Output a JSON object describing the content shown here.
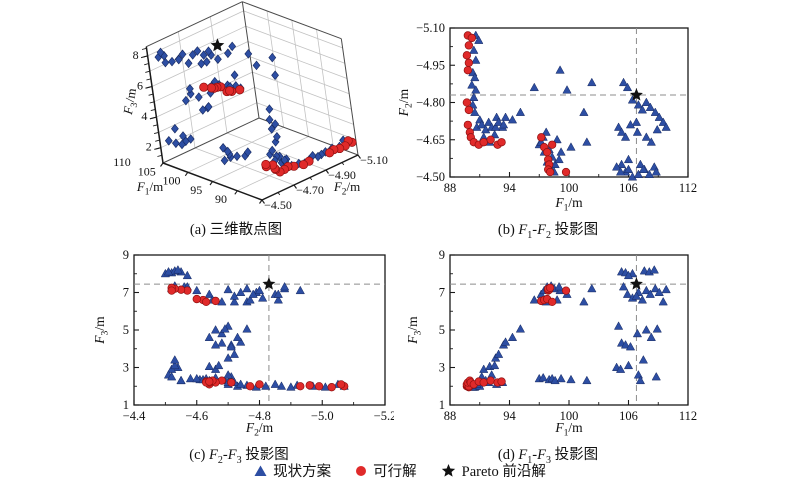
{
  "figure": {
    "colors": {
      "blue": "#2d4ea3",
      "blue_edge": "#17295f",
      "red": "#e02a2a",
      "red_edge": "#8f1010",
      "star": "#111111",
      "dash": "#8c8c8c",
      "grid3d": "#c2c2c2",
      "axis": "#1a1a1a"
    },
    "legend": {
      "items": [
        {
          "marker": "triangle",
          "label": "现状方案"
        },
        {
          "marker": "circle",
          "label": "可行解"
        },
        {
          "marker": "star",
          "label": "Pareto 前沿解"
        }
      ]
    },
    "captions": {
      "a": [
        {
          "t": "(a) 三维散点图"
        }
      ],
      "b": [
        {
          "t": "(b) "
        },
        {
          "i": "F"
        },
        {
          "sub": "1"
        },
        {
          "t": "-"
        },
        {
          "i": "F"
        },
        {
          "sub": "2"
        },
        {
          "t": " 投影图"
        }
      ],
      "c": [
        {
          "t": "(c) "
        },
        {
          "i": "F"
        },
        {
          "sub": "2"
        },
        {
          "t": "-"
        },
        {
          "i": "F"
        },
        {
          "sub": "3"
        },
        {
          "t": " 投影图"
        }
      ],
      "d": [
        {
          "t": "(d) "
        },
        {
          "i": "F"
        },
        {
          "sub": "1"
        },
        {
          "t": "-"
        },
        {
          "i": "F"
        },
        {
          "sub": "3"
        },
        {
          "t": " 投影图"
        }
      ]
    }
  },
  "solutions": {
    "comment_dims": "each point is [F1(m), F2(m), F3(m)]; blue=现状方案, red=可行解, pareto=Pareto 前沿解",
    "blue": [
      [
        90.6,
        -5.07,
        2.0
      ],
      [
        90.9,
        -5.05,
        2.1
      ],
      [
        90.4,
        -5.01,
        1.95
      ],
      [
        90.6,
        -4.97,
        2.0
      ],
      [
        90.3,
        -4.92,
        2.05
      ],
      [
        90.5,
        -4.9,
        1.95
      ],
      [
        90.2,
        -4.87,
        2.0
      ],
      [
        90.6,
        -4.85,
        2.1
      ],
      [
        90.4,
        -4.82,
        2.0
      ],
      [
        90.3,
        -4.79,
        1.95
      ],
      [
        90.5,
        -4.76,
        2.05
      ],
      [
        91.0,
        -4.73,
        2.0
      ],
      [
        90.7,
        -4.7,
        2.1
      ],
      [
        91.2,
        -4.71,
        2.5
      ],
      [
        91.6,
        -4.69,
        2.3
      ],
      [
        91.9,
        -4.72,
        2.2
      ],
      [
        92.2,
        -4.7,
        2.6
      ],
      [
        91.4,
        -4.66,
        2.9
      ],
      [
        92.0,
        -4.64,
        3.05
      ],
      [
        92.5,
        -4.67,
        3.1
      ],
      [
        93.3,
        -4.7,
        2.2
      ],
      [
        92.7,
        -4.74,
        2.1
      ],
      [
        92.6,
        -4.7,
        3.5
      ],
      [
        92.9,
        -4.72,
        3.7
      ],
      [
        93.4,
        -4.71,
        4.2
      ],
      [
        93.6,
        -4.74,
        4.35
      ],
      [
        94.3,
        -4.73,
        4.6
      ],
      [
        95.1,
        -4.76,
        5.05
      ],
      [
        96.5,
        -4.86,
        6.6
      ],
      [
        99.1,
        -4.93,
        7.1
      ],
      [
        99.8,
        -4.85,
        6.9
      ],
      [
        102.3,
        -4.88,
        7.2
      ],
      [
        101.5,
        -4.76,
        6.5
      ],
      [
        97.0,
        -4.63,
        2.4
      ],
      [
        97.4,
        -4.66,
        2.45
      ],
      [
        98.0,
        -4.61,
        2.35
      ],
      [
        98.3,
        -4.58,
        2.4
      ],
      [
        98.6,
        -4.55,
        2.3
      ],
      [
        99.2,
        -4.6,
        2.4
      ],
      [
        100.2,
        -4.62,
        2.35
      ],
      [
        101.8,
        -4.64,
        2.3
      ],
      [
        97.2,
        -4.64,
        6.9
      ],
      [
        97.5,
        -4.6,
        7.1
      ],
      [
        97.8,
        -4.56,
        7.3
      ],
      [
        98.2,
        -4.53,
        7.35
      ],
      [
        98.5,
        -4.52,
        7.2
      ],
      [
        99.0,
        -4.57,
        7.3
      ],
      [
        98.8,
        -4.65,
        6.6
      ],
      [
        97.7,
        -4.68,
        6.5
      ],
      [
        105.3,
        -4.55,
        8.1
      ],
      [
        105.7,
        -4.52,
        8.05
      ],
      [
        106.4,
        -4.5,
        8.0
      ],
      [
        107.6,
        -4.53,
        8.15
      ],
      [
        108.1,
        -4.51,
        8.1
      ],
      [
        108.6,
        -4.54,
        8.2
      ],
      [
        106.0,
        -4.57,
        7.9
      ],
      [
        105.5,
        -4.88,
        7.3
      ],
      [
        105.9,
        -4.86,
        6.9
      ],
      [
        106.4,
        -4.81,
        6.7
      ],
      [
        107.0,
        -4.79,
        7.0
      ],
      [
        107.4,
        -4.77,
        6.6
      ],
      [
        107.8,
        -4.8,
        7.1
      ],
      [
        108.2,
        -4.78,
        6.9
      ],
      [
        108.7,
        -4.76,
        7.2
      ],
      [
        109.1,
        -4.74,
        7.0
      ],
      [
        109.5,
        -4.72,
        6.5
      ],
      [
        109.8,
        -4.7,
        7.15
      ],
      [
        106.8,
        -4.72,
        6.8
      ],
      [
        105.0,
        -4.7,
        5.2
      ],
      [
        105.3,
        -4.68,
        4.3
      ],
      [
        105.7,
        -4.66,
        4.2
      ],
      [
        106.9,
        -4.68,
        4.8
      ],
      [
        107.8,
        -4.66,
        5.0
      ],
      [
        108.3,
        -4.64,
        4.6
      ],
      [
        108.9,
        -4.69,
        5.05
      ],
      [
        106.2,
        -4.71,
        4.1
      ],
      [
        104.8,
        -4.54,
        3.0
      ],
      [
        105.2,
        -4.52,
        2.9
      ],
      [
        106.0,
        -4.53,
        3.1
      ],
      [
        107.0,
        -4.51,
        2.6
      ],
      [
        107.2,
        -4.55,
        2.3
      ],
      [
        107.5,
        -4.53,
        3.4
      ],
      [
        108.8,
        -4.52,
        2.5
      ]
    ],
    "red": [
      [
        89.8,
        -5.07,
        2.0
      ],
      [
        90.2,
        -5.06,
        2.1
      ],
      [
        89.9,
        -5.03,
        1.95
      ],
      [
        89.7,
        -4.99,
        2.0
      ],
      [
        89.9,
        -4.96,
        2.05
      ],
      [
        89.8,
        -4.93,
        2.0
      ],
      [
        89.7,
        -4.8,
        2.1
      ],
      [
        89.9,
        -4.77,
        2.0
      ],
      [
        89.8,
        -4.71,
        2.2
      ],
      [
        90.0,
        -4.68,
        2.3
      ],
      [
        90.1,
        -4.66,
        2.2
      ],
      [
        90.4,
        -4.64,
        2.1
      ],
      [
        90.9,
        -4.63,
        2.25
      ],
      [
        91.4,
        -4.64,
        2.2
      ],
      [
        92.1,
        -4.65,
        2.3
      ],
      [
        92.8,
        -4.63,
        2.2
      ],
      [
        93.2,
        -4.64,
        2.25
      ],
      [
        97.2,
        -4.66,
        6.55
      ],
      [
        97.5,
        -4.62,
        6.6
      ],
      [
        97.8,
        -4.6,
        6.65
      ],
      [
        98.3,
        -4.63,
        6.5
      ],
      [
        97.9,
        -4.57,
        7.1
      ],
      [
        98.0,
        -4.55,
        7.15
      ],
      [
        97.9,
        -4.53,
        7.2
      ],
      [
        98.1,
        -4.52,
        7.25
      ],
      [
        99.7,
        -4.52,
        7.1
      ]
    ],
    "pareto": [
      106.8,
      -4.83,
      7.45
    ]
  },
  "chart_data": [
    {
      "id": "a",
      "type": "scatter",
      "projection": "3d",
      "title": "(a) 三维散点图",
      "x_axis": {
        "label_parts": [
          {
            "i": "F"
          },
          {
            "sub": "1"
          },
          {
            "t": "/m"
          }
        ],
        "range": [
          90,
          110
        ],
        "tick_values": [
          110,
          105,
          100,
          95,
          90
        ],
        "tick_labels": [
          "110",
          "105",
          "100",
          "95",
          "90"
        ]
      },
      "y_axis": {
        "label_parts": [
          {
            "i": "F"
          },
          {
            "sub": "2"
          },
          {
            "t": "/m"
          }
        ],
        "range": [
          -4.5,
          -5.1
        ],
        "tick_values": [
          -4.5,
          -4.7,
          -4.9,
          -5.1
        ],
        "tick_labels": [
          "−4.50",
          "−4.70",
          "−4.90",
          "−5.10"
        ]
      },
      "z_axis": {
        "label_parts": [
          {
            "i": "F"
          },
          {
            "sub": "3"
          },
          {
            "t": "/m"
          }
        ],
        "range": [
          1,
          8.6
        ],
        "tick_values": [
          2,
          4,
          6,
          8
        ],
        "tick_labels": [
          "2",
          "4",
          "6",
          "8"
        ]
      },
      "series": [
        {
          "name": "现状方案",
          "marker": "triangle",
          "points_ref": "solutions.blue"
        },
        {
          "name": "可行解",
          "marker": "circle",
          "points_ref": "solutions.red"
        },
        {
          "name": "Pareto 前沿解",
          "marker": "star",
          "points_ref": "solutions.pareto"
        }
      ]
    },
    {
      "id": "b",
      "type": "scatter",
      "title": "(b) F1-F2 投影图",
      "dims": [
        0,
        1
      ],
      "x_axis": {
        "label_parts": [
          {
            "i": "F"
          },
          {
            "sub": "1"
          },
          {
            "t": "/m"
          }
        ],
        "range": [
          88,
          112
        ],
        "tick_values": [
          88,
          94,
          100,
          106,
          112
        ],
        "tick_labels": [
          "88",
          "94",
          "100",
          "106",
          "112"
        ]
      },
      "y_axis": {
        "label_parts": [
          {
            "i": "F"
          },
          {
            "sub": "2"
          },
          {
            "t": "/m"
          }
        ],
        "range": [
          -5.1,
          -4.5
        ],
        "tick_values": [
          -5.1,
          -4.95,
          -4.8,
          -4.65,
          -4.5
        ],
        "tick_labels": [
          "−5.10",
          "−4.95",
          "−4.80",
          "−4.65",
          "−4.50"
        ]
      },
      "crosshair": [
        106.8,
        -4.83
      ]
    },
    {
      "id": "c",
      "type": "scatter",
      "title": "(c) F2-F3 投影图",
      "dims": [
        1,
        2
      ],
      "x_axis": {
        "label_parts": [
          {
            "i": "F"
          },
          {
            "sub": "2"
          },
          {
            "t": "/m"
          }
        ],
        "range": [
          -4.4,
          -5.2
        ],
        "tick_values": [
          -4.4,
          -4.6,
          -4.8,
          -5.0,
          -5.2
        ],
        "tick_labels": [
          "−4.4",
          "−4.6",
          "−4.8",
          "−5.0",
          "−5.2"
        ]
      },
      "y_axis": {
        "label_parts": [
          {
            "i": "F"
          },
          {
            "sub": "3"
          },
          {
            "t": "/m"
          }
        ],
        "range": [
          9,
          1
        ],
        "tick_values": [
          9,
          7,
          5,
          3,
          1
        ],
        "tick_labels": [
          "9",
          "7",
          "5",
          "3",
          "1"
        ]
      },
      "crosshair": [
        -4.83,
        7.45
      ]
    },
    {
      "id": "d",
      "type": "scatter",
      "title": "(d) F1-F3 投影图",
      "dims": [
        0,
        2
      ],
      "x_axis": {
        "label_parts": [
          {
            "i": "F"
          },
          {
            "sub": "1"
          },
          {
            "t": "/m"
          }
        ],
        "range": [
          88,
          112
        ],
        "tick_values": [
          88,
          94,
          100,
          106,
          112
        ],
        "tick_labels": [
          "88",
          "94",
          "100",
          "106",
          "112"
        ]
      },
      "y_axis": {
        "label_parts": [
          {
            "i": "F"
          },
          {
            "sub": "3"
          },
          {
            "t": "/m"
          }
        ],
        "range": [
          9,
          1
        ],
        "tick_values": [
          9,
          7,
          5,
          3,
          1
        ],
        "tick_labels": [
          "9",
          "7",
          "5",
          "3",
          "1"
        ]
      },
      "crosshair": [
        106.8,
        7.45
      ]
    }
  ]
}
